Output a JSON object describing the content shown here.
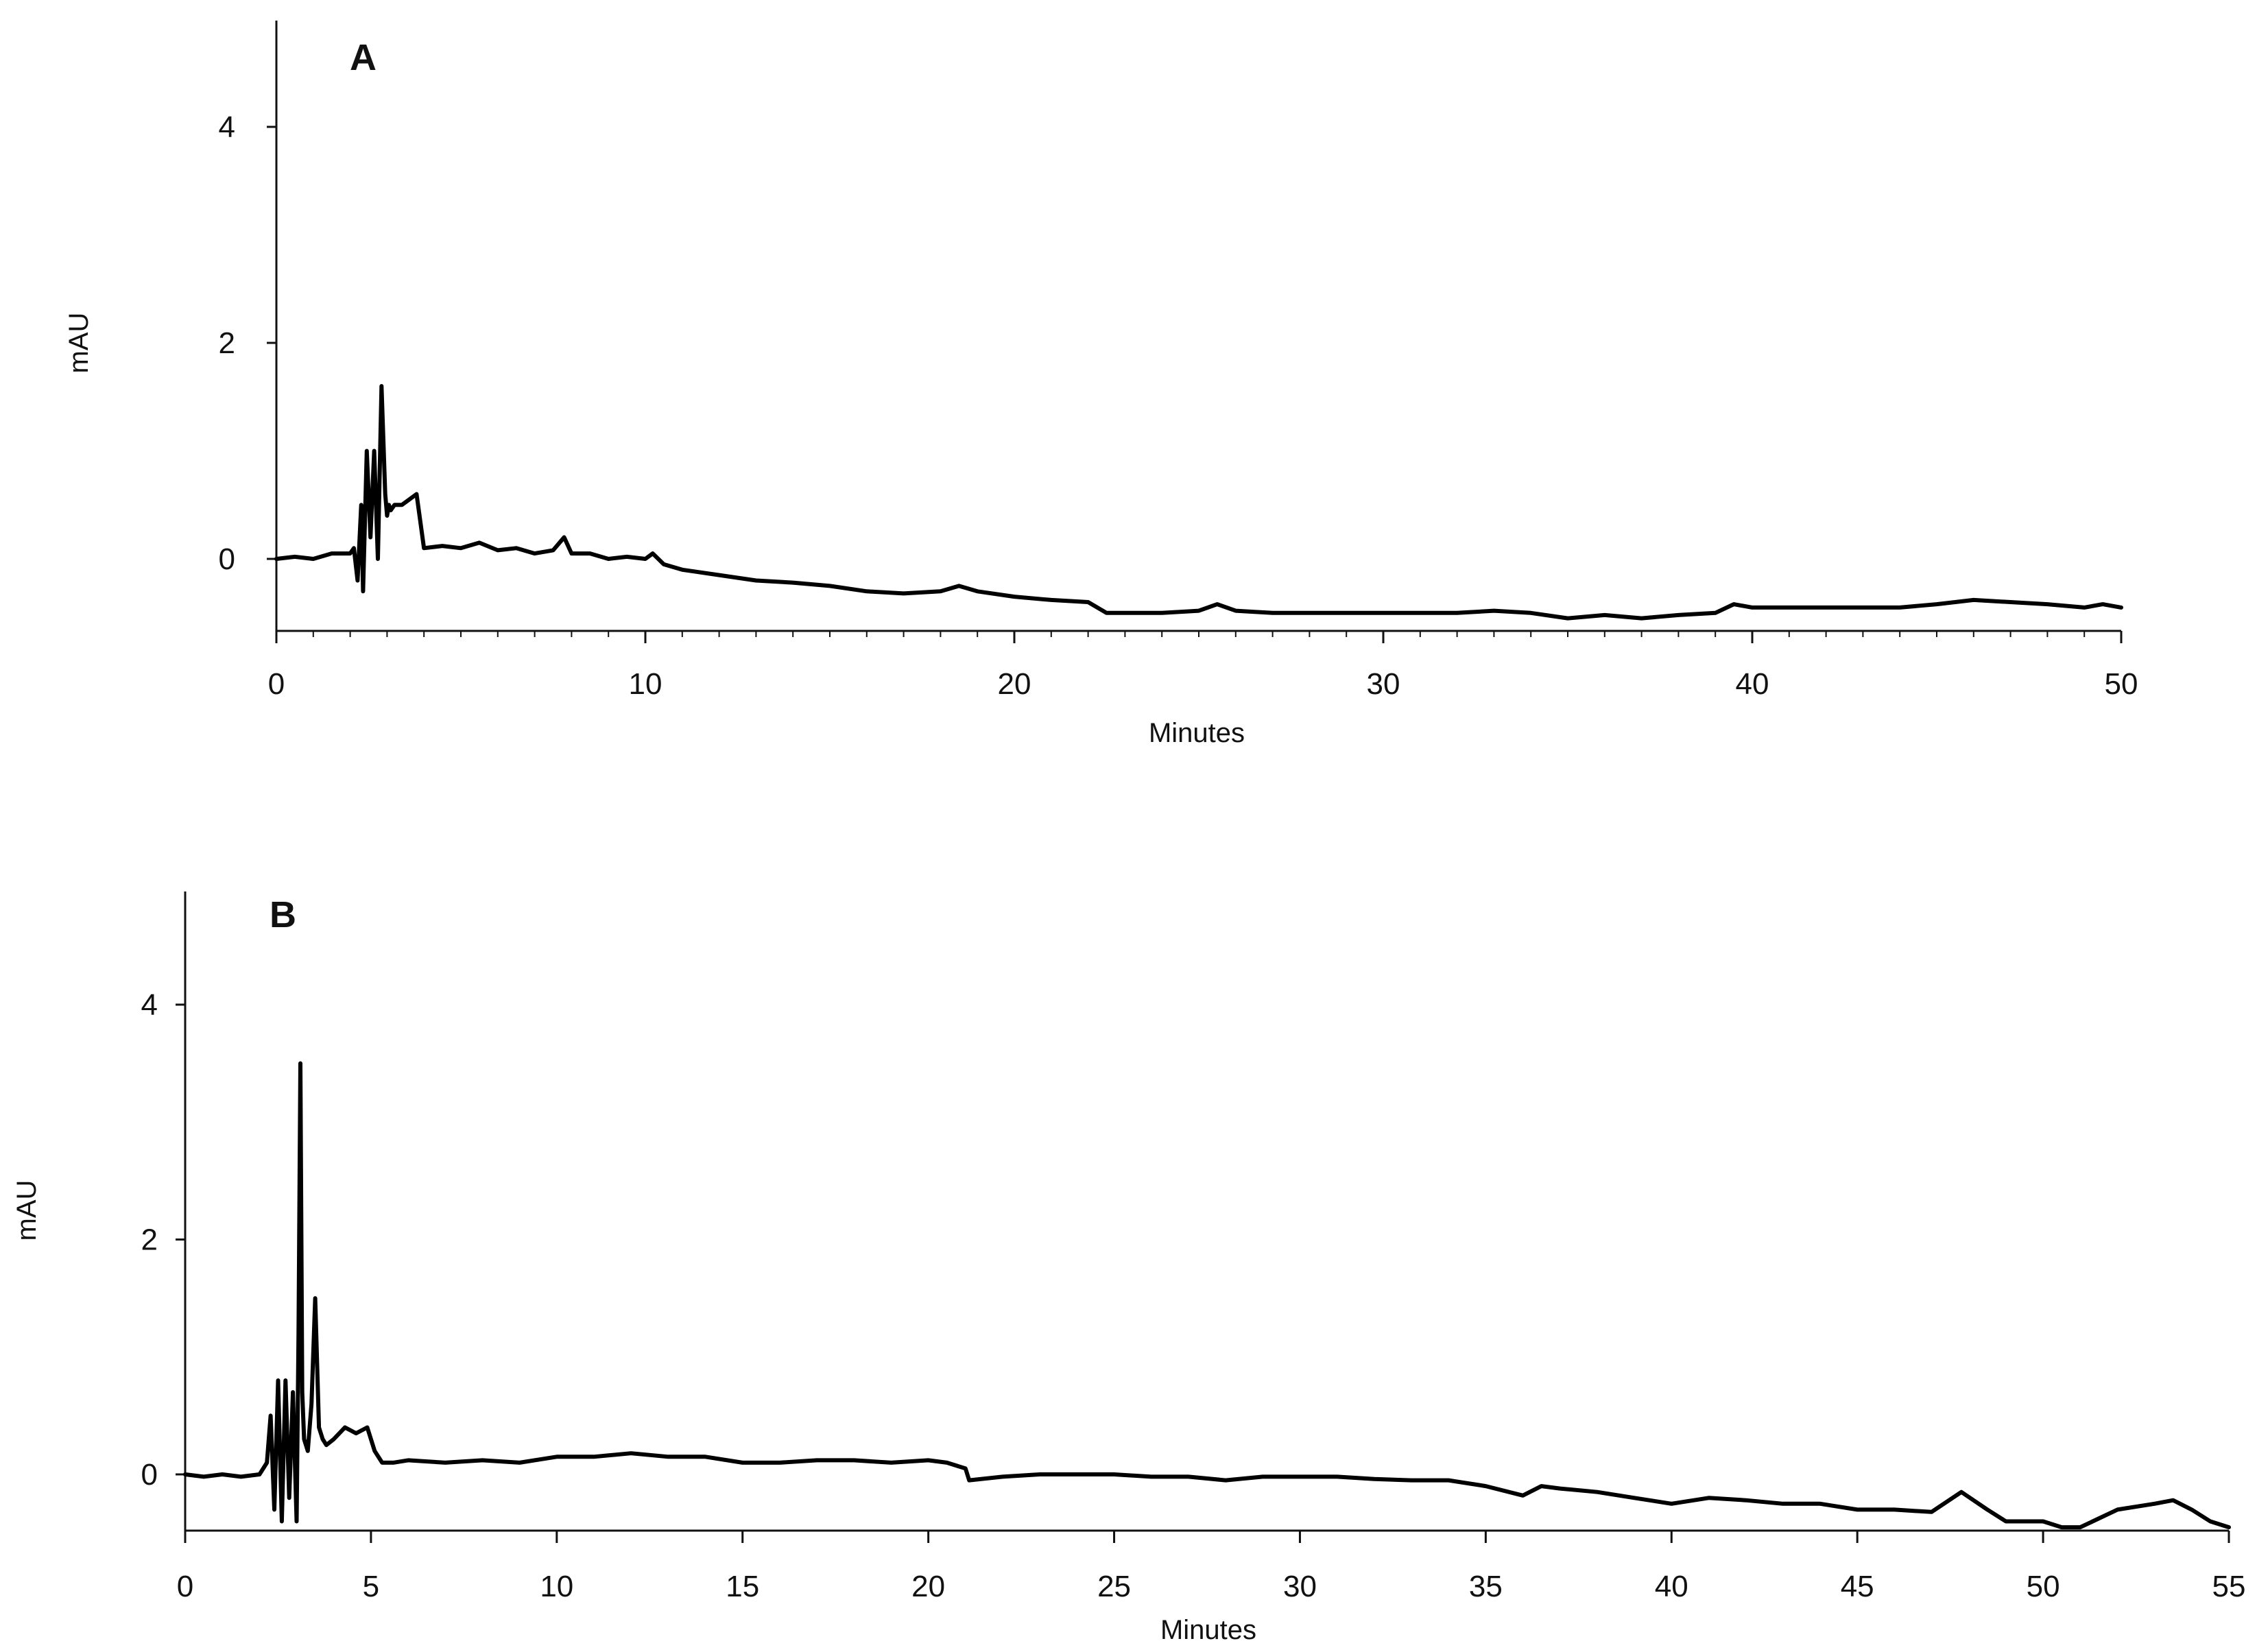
{
  "chart_data": [
    {
      "type": "line",
      "panel_label": "A",
      "xlabel": "Minutes",
      "ylabel": "mAU",
      "xlim": [
        0,
        50
      ],
      "ylim": [
        -0.7,
        4.9
      ],
      "xticks": [
        0,
        10,
        20,
        30,
        40,
        50
      ],
      "yticks": [
        0,
        2,
        4
      ],
      "grid": false,
      "series": [
        {
          "color": "#000000",
          "x": [
            0,
            0.5,
            1,
            1.5,
            2,
            2.1,
            2.2,
            2.3,
            2.35,
            2.45,
            2.55,
            2.65,
            2.75,
            2.85,
            2.95,
            3.0,
            3.05,
            3.1,
            3.2,
            3.4,
            3.6,
            3.8,
            4.0,
            4.5,
            5,
            5.5,
            6,
            6.5,
            7,
            7.5,
            7.8,
            8,
            8.5,
            9,
            9.5,
            10,
            10.2,
            10.5,
            11,
            12,
            13,
            14,
            15,
            16,
            17,
            18,
            18.5,
            19,
            20,
            21,
            22,
            22.5,
            23,
            24,
            25,
            25.5,
            26,
            27,
            28,
            30,
            32,
            33,
            34,
            35,
            36,
            37,
            38,
            39,
            39.5,
            40,
            42,
            44,
            45,
            46,
            47,
            48,
            49,
            49.5,
            50
          ],
          "y": [
            0.0,
            0.02,
            0.0,
            0.05,
            0.05,
            0.1,
            -0.2,
            0.5,
            -0.3,
            1.0,
            0.2,
            1.0,
            0.0,
            1.6,
            0.6,
            0.4,
            0.5,
            0.45,
            0.5,
            0.5,
            0.55,
            0.6,
            0.1,
            0.12,
            0.1,
            0.15,
            0.08,
            0.1,
            0.05,
            0.08,
            0.2,
            0.05,
            0.05,
            0.0,
            0.02,
            0.0,
            0.05,
            -0.05,
            -0.1,
            -0.15,
            -0.2,
            -0.22,
            -0.25,
            -0.3,
            -0.32,
            -0.3,
            -0.25,
            -0.3,
            -0.35,
            -0.38,
            -0.4,
            -0.5,
            -0.5,
            -0.5,
            -0.48,
            -0.42,
            -0.48,
            -0.5,
            -0.5,
            -0.5,
            -0.5,
            -0.48,
            -0.5,
            -0.55,
            -0.52,
            -0.55,
            -0.52,
            -0.5,
            -0.42,
            -0.45,
            -0.45,
            -0.45,
            -0.42,
            -0.38,
            -0.4,
            -0.42,
            -0.45,
            -0.42,
            -0.45
          ]
        }
      ]
    },
    {
      "type": "line",
      "panel_label": "B",
      "xlabel": "Minutes",
      "ylabel": "mAU",
      "xlim": [
        0,
        55
      ],
      "ylim": [
        -0.5,
        4.9
      ],
      "xticks": [
        0,
        5,
        10,
        15,
        20,
        25,
        30,
        35,
        40,
        45,
        50,
        55
      ],
      "yticks": [
        0,
        2,
        4
      ],
      "grid": false,
      "series": [
        {
          "color": "#000000",
          "x": [
            0,
            0.5,
            1,
            1.5,
            2,
            2.2,
            2.3,
            2.4,
            2.5,
            2.6,
            2.7,
            2.8,
            2.9,
            3.0,
            3.05,
            3.1,
            3.15,
            3.2,
            3.3,
            3.4,
            3.5,
            3.6,
            3.7,
            3.8,
            4.0,
            4.3,
            4.6,
            4.9,
            5.1,
            5.3,
            5.6,
            6,
            7,
            8,
            9,
            10,
            11,
            12,
            13,
            14,
            15,
            16,
            17,
            18,
            19,
            20,
            20.5,
            21,
            21.1,
            22,
            23,
            24,
            25,
            26,
            27,
            28,
            29,
            30,
            31,
            32,
            33,
            34,
            35,
            36,
            36.5,
            37,
            38,
            39,
            40,
            41,
            42,
            43,
            44,
            45,
            46,
            47,
            47.8,
            48.5,
            49,
            50,
            50.5,
            51,
            52,
            53,
            53.5,
            54,
            54.5,
            55
          ],
          "y": [
            0.0,
            -0.02,
            0.0,
            -0.02,
            0.0,
            0.1,
            0.5,
            -0.3,
            0.8,
            -0.4,
            0.8,
            -0.2,
            0.7,
            -0.4,
            1.2,
            3.5,
            0.7,
            0.3,
            0.2,
            0.6,
            1.5,
            0.4,
            0.3,
            0.25,
            0.3,
            0.4,
            0.35,
            0.4,
            0.2,
            0.1,
            0.1,
            0.12,
            0.1,
            0.12,
            0.1,
            0.15,
            0.15,
            0.18,
            0.15,
            0.15,
            0.1,
            0.1,
            0.12,
            0.12,
            0.1,
            0.12,
            0.1,
            0.05,
            -0.05,
            -0.02,
            0.0,
            0.0,
            0.0,
            -0.02,
            -0.02,
            -0.05,
            -0.02,
            -0.02,
            -0.02,
            -0.04,
            -0.05,
            -0.05,
            -0.1,
            -0.18,
            -0.1,
            -0.12,
            -0.15,
            -0.2,
            -0.25,
            -0.2,
            -0.22,
            -0.25,
            -0.25,
            -0.3,
            -0.3,
            -0.32,
            -0.15,
            -0.3,
            -0.4,
            -0.4,
            -0.45,
            -0.45,
            -0.3,
            -0.25,
            -0.22,
            -0.3,
            -0.4,
            -0.45
          ]
        }
      ]
    }
  ]
}
